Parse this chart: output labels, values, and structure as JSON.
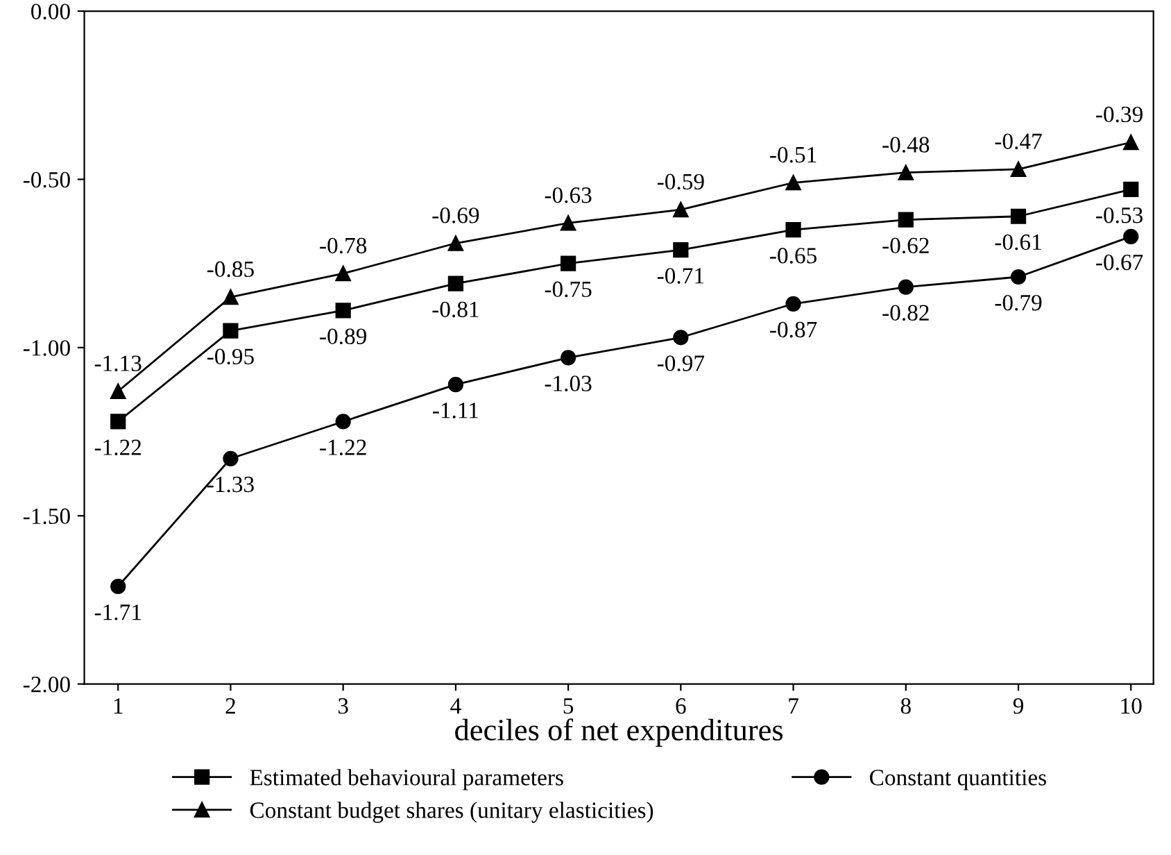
{
  "chart_data": {
    "type": "line",
    "xlabel": "deciles of net expenditures",
    "x": [
      1,
      2,
      3,
      4,
      5,
      6,
      7,
      8,
      9,
      10
    ],
    "series": [
      {
        "name": "Estimated behavioural parameters",
        "color": "#000000",
        "marker": "square",
        "values": [
          -1.22,
          -0.95,
          -0.89,
          -0.81,
          -0.75,
          -0.71,
          -0.65,
          -0.62,
          -0.61,
          -0.53
        ]
      },
      {
        "name": "Constant quantities",
        "color": "#000000",
        "marker": "circle",
        "values": [
          -1.71,
          -1.33,
          -1.22,
          -1.11,
          -1.03,
          -0.97,
          -0.87,
          -0.82,
          -0.79,
          -0.67
        ]
      },
      {
        "name": "Constant budget shares (unitary elasticities)",
        "color": "#000000",
        "marker": "triangle",
        "values": [
          -1.13,
          -0.85,
          -0.78,
          -0.69,
          -0.63,
          -0.59,
          -0.51,
          -0.48,
          -0.47,
          -0.39
        ]
      }
    ],
    "xlim": [
      0.7,
      10.2
    ],
    "xticks": [
      1,
      2,
      3,
      4,
      5,
      6,
      7,
      8,
      9,
      10
    ],
    "ylim": [
      -2.0,
      0.0
    ],
    "yticks": [
      {
        "value": -2.0,
        "label": "-2.00"
      },
      {
        "value": -1.5,
        "label": "-1.50"
      },
      {
        "value": -1.0,
        "label": "-1.00"
      },
      {
        "value": -0.5,
        "label": "-0.50"
      },
      {
        "value": 0.0,
        "label": "0.00"
      }
    ],
    "data_labels": true,
    "grid": false,
    "legend": "bottom",
    "line_style": "solid"
  }
}
